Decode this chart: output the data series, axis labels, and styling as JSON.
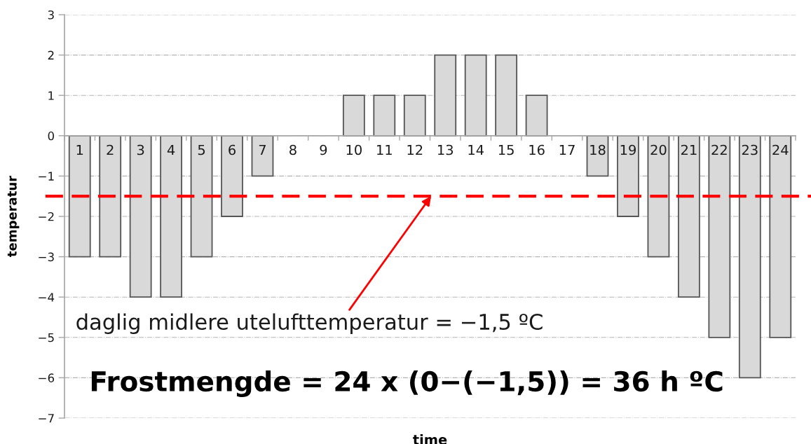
{
  "chart_data": {
    "type": "bar",
    "xlabel": "time",
    "ylabel": "temperatur",
    "categories": [
      "1",
      "2",
      "3",
      "4",
      "5",
      "6",
      "7",
      "8",
      "9",
      "10",
      "11",
      "12",
      "13",
      "14",
      "15",
      "16",
      "17",
      "18",
      "19",
      "20",
      "21",
      "22",
      "23",
      "24"
    ],
    "values": [
      -3,
      -3,
      -4,
      -4,
      -3,
      -2,
      -1,
      0,
      0,
      1,
      1,
      1,
      2,
      2,
      2,
      1,
      0,
      -1,
      -2,
      -3,
      -4,
      -5,
      -6,
      -5
    ],
    "color": "#d9d9d9",
    "ylim": [
      -7,
      3
    ],
    "yticks": [
      {
        "value": -7,
        "label": "−7"
      },
      {
        "value": -6,
        "label": "−6"
      },
      {
        "value": -5,
        "label": "−5"
      },
      {
        "value": -4,
        "label": "−4"
      },
      {
        "value": -3,
        "label": "−3"
      },
      {
        "value": -2,
        "label": "−2"
      },
      {
        "value": -1,
        "label": "−1"
      },
      0,
      1,
      2,
      3
    ],
    "grid": "y",
    "ref_lines": [
      {
        "axis": "y",
        "value": -1.5,
        "label": "daglig midlere utelufttemperatur = −1,5 ºC",
        "color": "#ff0000",
        "line_style": "dashed"
      }
    ],
    "annotations": [
      "Frostmengde = 24 x (0−(−1,5)) = 36 h ºC"
    ]
  }
}
